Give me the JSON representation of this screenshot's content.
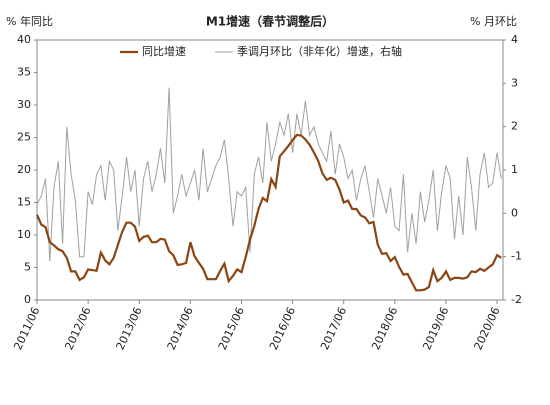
{
  "chart_data": {
    "type": "line",
    "title": "M1增速（春节调整后）",
    "y_label": "% 年同比",
    "y2_label": "% 月环比",
    "categories": [
      "2011/06",
      null,
      null,
      null,
      null,
      null,
      null,
      null,
      null,
      null,
      null,
      null,
      "2012/06",
      null,
      null,
      null,
      null,
      null,
      null,
      null,
      null,
      null,
      null,
      null,
      "2013/06",
      null,
      null,
      null,
      null,
      null,
      null,
      null,
      null,
      null,
      null,
      null,
      "2014/06",
      null,
      null,
      null,
      null,
      null,
      null,
      null,
      null,
      null,
      null,
      null,
      "2015/06",
      null,
      null,
      null,
      null,
      null,
      null,
      null,
      null,
      null,
      null,
      null,
      "2016/06",
      null,
      null,
      null,
      null,
      null,
      null,
      null,
      null,
      null,
      null,
      null,
      "2017/06",
      null,
      null,
      null,
      null,
      null,
      null,
      null,
      null,
      null,
      null,
      null,
      "2018/06",
      null,
      null,
      null,
      null,
      null,
      null,
      null,
      null,
      null,
      null,
      null,
      "2019/06",
      null,
      null,
      null,
      null,
      null,
      null,
      null,
      null,
      null,
      null,
      null,
      "2020/06",
      null
    ],
    "series": [
      {
        "name": "同比增速",
        "color": "#8b4513",
        "width": 2.2,
        "axis": "y",
        "values": [
          13.1,
          11.6,
          11.2,
          8.9,
          8.4,
          7.8,
          7.5,
          6.5,
          4.4,
          4.4,
          3.1,
          3.5,
          4.7,
          4.6,
          4.5,
          7.3,
          6.1,
          5.5,
          6.5,
          8.5,
          10.5,
          11.9,
          11.9,
          11.3,
          9.1,
          9.7,
          9.9,
          8.9,
          8.9,
          9.4,
          9.3,
          7.5,
          6.9,
          5.4,
          5.5,
          5.7,
          8.9,
          6.7,
          5.7,
          4.8,
          3.2,
          3.2,
          3.2,
          4.5,
          5.6,
          2.9,
          3.7,
          4.7,
          4.3,
          6.6,
          9.3,
          11.4,
          14.0,
          15.7,
          15.2,
          18.6,
          17.4,
          22.1,
          22.9,
          23.7,
          24.6,
          25.4,
          25.3,
          24.7,
          23.9,
          22.7,
          21.4,
          19.5,
          18.5,
          18.8,
          18.5,
          17.0,
          15.0,
          15.3,
          14.0,
          14.0,
          13.0,
          12.7,
          11.8,
          12.0,
          8.5,
          7.1,
          7.2,
          6.0,
          6.6,
          5.1,
          3.9,
          4.0,
          2.7,
          1.5,
          1.5,
          1.6,
          2.0,
          4.6,
          2.9,
          3.4,
          4.4,
          3.1,
          3.4,
          3.4,
          3.3,
          3.5,
          4.4,
          4.3,
          4.8,
          4.5,
          5.0,
          5.5,
          6.9,
          6.5
        ]
      },
      {
        "name": "季调月环比（非年化）增速，右轴",
        "color": "#a0a0a0",
        "width": 1,
        "axis": "y2",
        "values": [
          0.2,
          0.4,
          0.8,
          -1.1,
          0.6,
          1.2,
          -0.7,
          2.0,
          0.9,
          0.3,
          -1.0,
          -1.0,
          0.5,
          0.2,
          0.9,
          1.1,
          0.3,
          1.2,
          1.0,
          -0.4,
          0.4,
          1.3,
          0.5,
          1.0,
          -0.3,
          0.8,
          1.2,
          0.5,
          0.9,
          1.5,
          0.7,
          2.9,
          0.0,
          0.4,
          0.9,
          0.4,
          0.7,
          1.0,
          0.3,
          1.5,
          0.5,
          0.8,
          1.1,
          1.3,
          1.7,
          0.8,
          -0.3,
          0.5,
          0.4,
          0.6,
          -0.9,
          0.9,
          1.3,
          0.7,
          2.1,
          1.2,
          1.6,
          2.1,
          1.8,
          2.3,
          1.4,
          2.3,
          1.8,
          2.6,
          1.8,
          2.0,
          1.6,
          1.4,
          1.2,
          1.9,
          0.9,
          1.6,
          1.3,
          0.8,
          1.0,
          0.3,
          0.8,
          1.1,
          0.5,
          -0.1,
          0.8,
          0.4,
          0.0,
          0.6,
          -0.3,
          -0.4,
          0.9,
          -0.9,
          0.0,
          -0.7,
          0.5,
          -0.2,
          0.3,
          1.0,
          -0.4,
          0.5,
          1.1,
          0.8,
          -0.6,
          0.4,
          -0.5,
          1.3,
          0.6,
          -0.4,
          0.9,
          1.4,
          0.6,
          0.7,
          1.4,
          0.8
        ]
      }
    ],
    "ylim": [
      0,
      40
    ],
    "yticks": [
      0,
      5,
      10,
      15,
      20,
      25,
      30,
      35,
      40
    ],
    "y2lim": [
      -2,
      4
    ],
    "y2ticks": [
      -2,
      -1,
      0,
      1,
      2,
      3,
      4
    ],
    "grid": false,
    "legend": "top"
  }
}
